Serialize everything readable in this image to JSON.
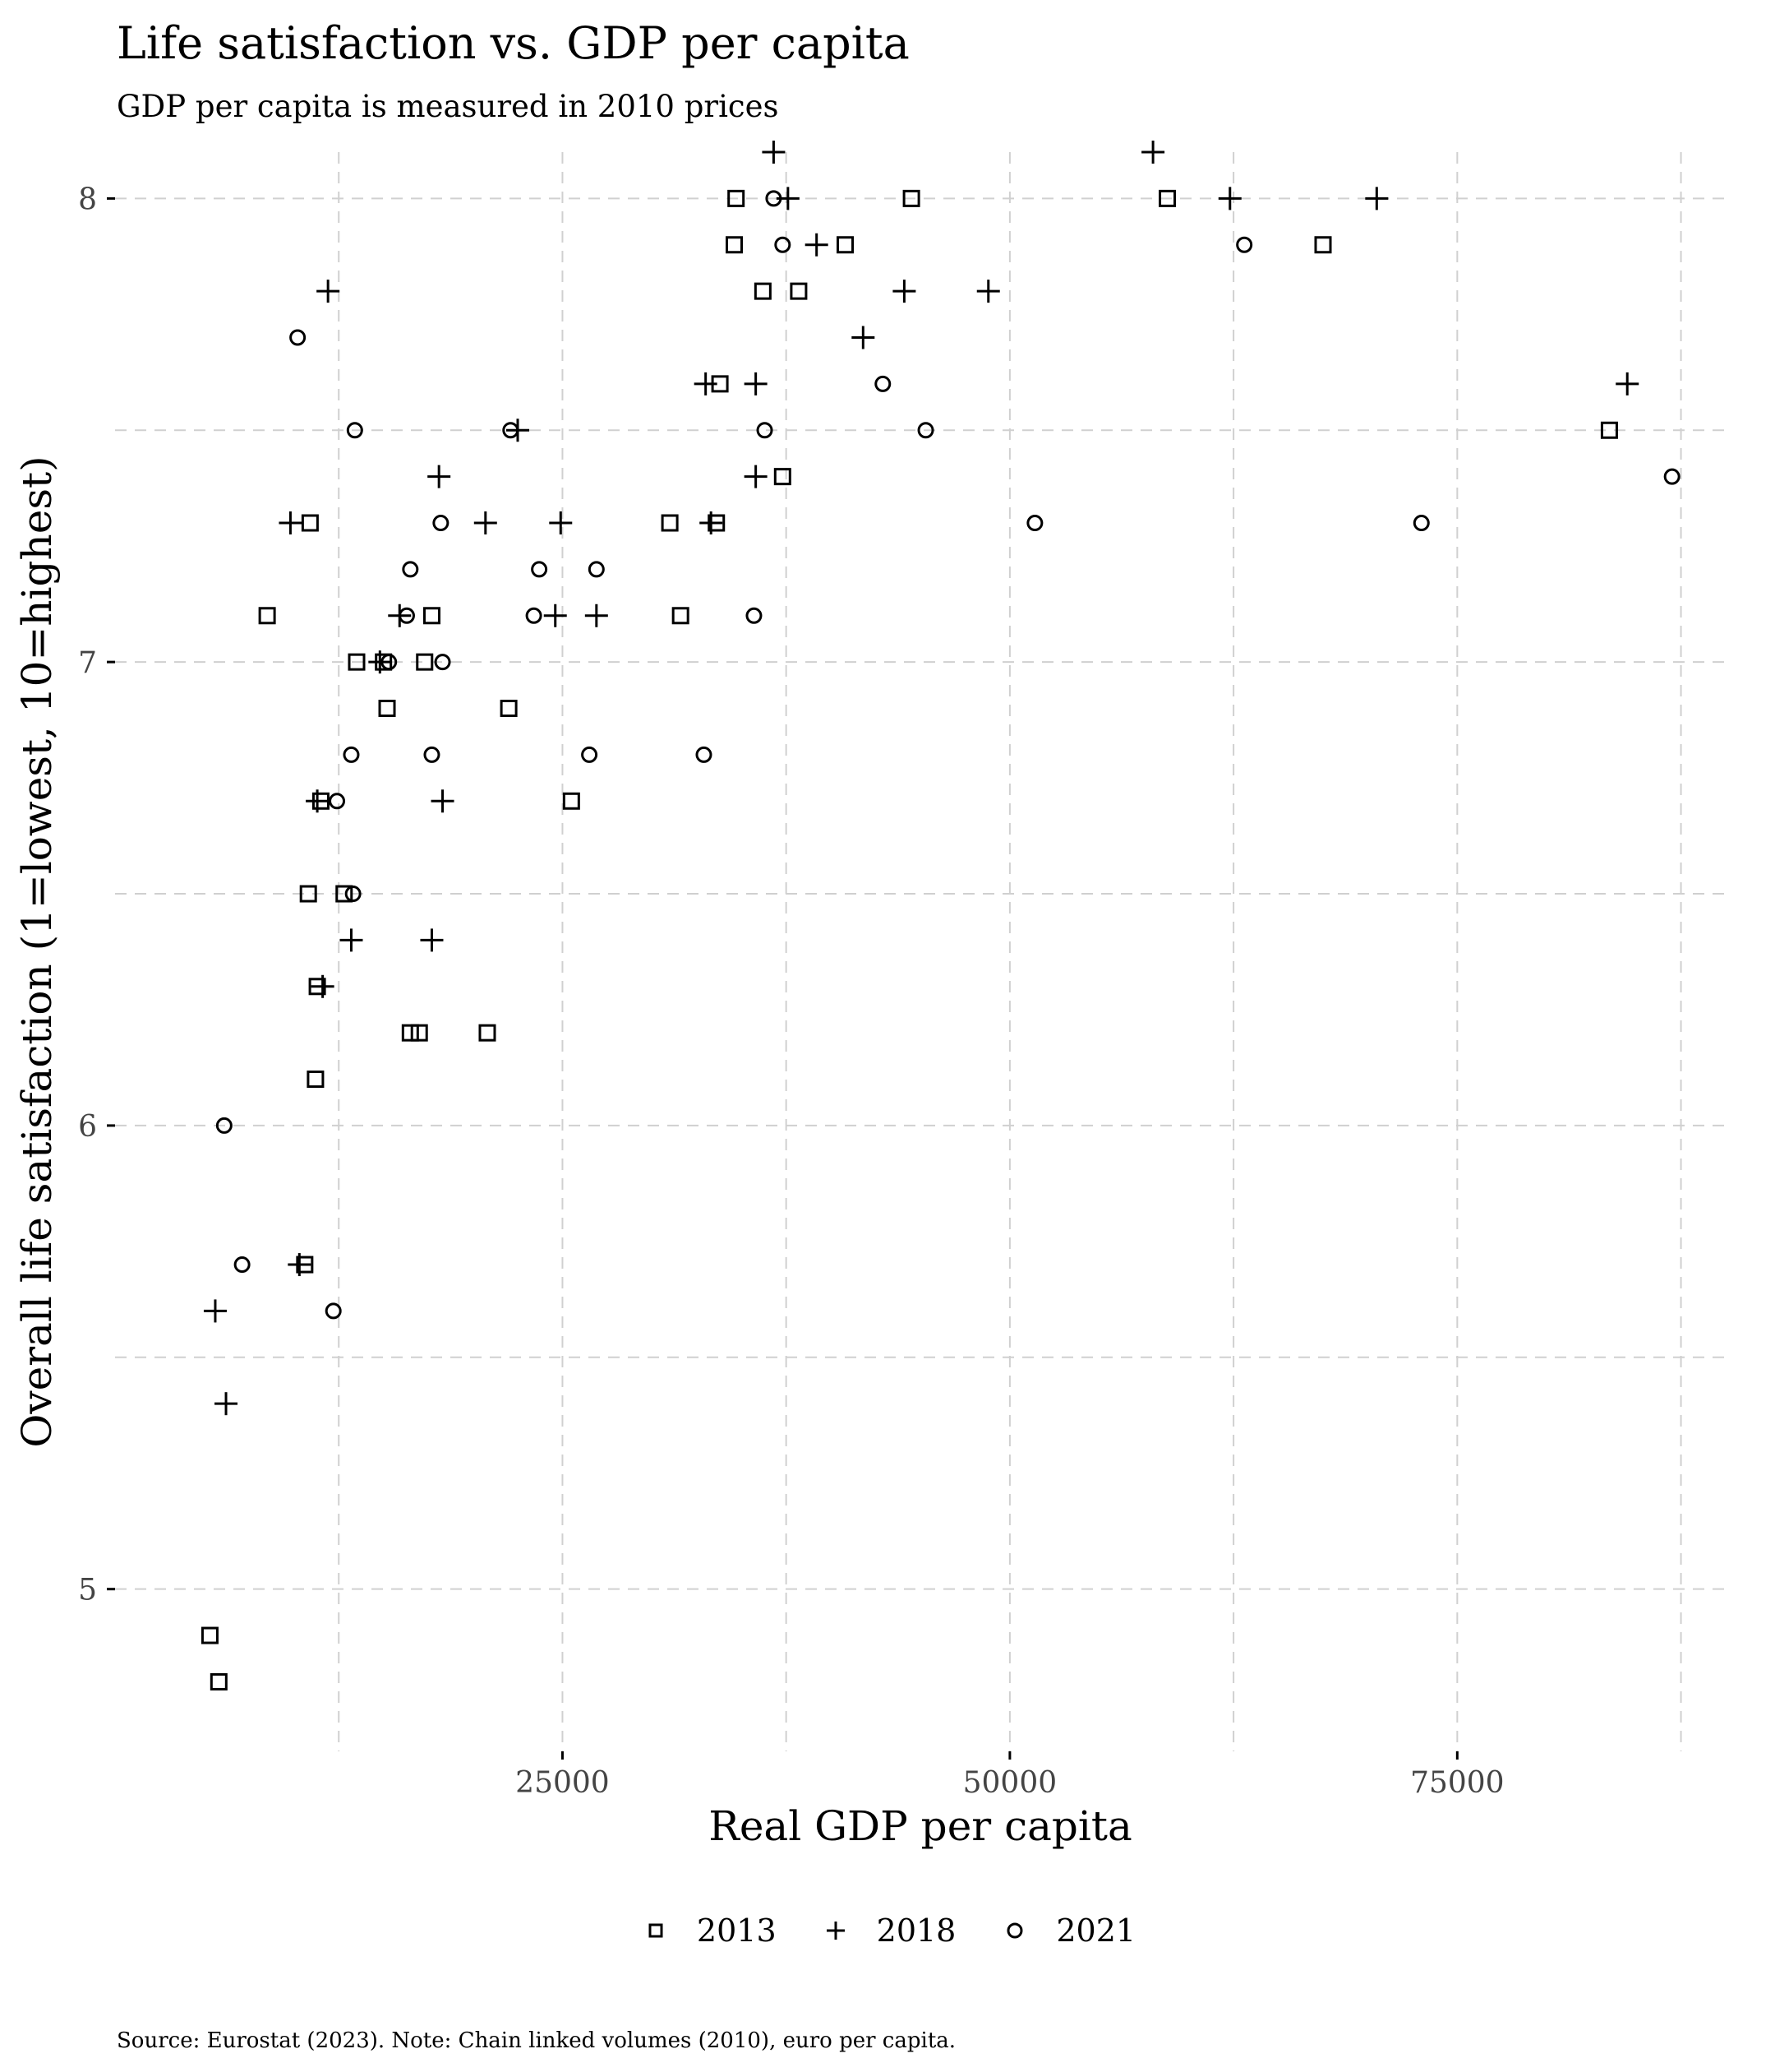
{
  "title": "Life satisfaction vs. GDP per capita",
  "subtitle": "GDP per capita is measured in 2010 prices",
  "caption": "Source: Eurostat (2023). Note: Chain linked volumes (2010), euro per capita.",
  "colors": {
    "grid": "#d0d0d0",
    "points": "#000000",
    "background": "#ffffff"
  },
  "chart_data": {
    "type": "scatter",
    "title": "Life satisfaction vs. GDP per capita",
    "subtitle": "GDP per capita is measured in 2010 prices",
    "xlabel": "Real GDP per capita",
    "ylabel": "Overall life satisfaction (1=lowest, 10=highest)",
    "xlim": [
      0,
      90000
    ],
    "ylim": [
      4.65,
      8.1
    ],
    "x_ticks": [
      25000,
      50000,
      75000
    ],
    "y_ticks": [
      5,
      6,
      7,
      8
    ],
    "grid": true,
    "legend_position": "bottom",
    "series": [
      {
        "name": "2013",
        "marker": "square",
        "points": [
          [
            5300,
            4.9
          ],
          [
            5800,
            4.8
          ],
          [
            8500,
            7.1
          ],
          [
            10900,
            7.3
          ],
          [
            10600,
            5.7
          ],
          [
            10800,
            6.5
          ],
          [
            11300,
            6.3
          ],
          [
            11200,
            6.1
          ],
          [
            11500,
            6.7
          ],
          [
            12800,
            6.5
          ],
          [
            13500,
            7.0
          ],
          [
            15000,
            7.0
          ],
          [
            15200,
            6.9
          ],
          [
            16500,
            6.2
          ],
          [
            17000,
            6.2
          ],
          [
            17300,
            7.0
          ],
          [
            17700,
            7.1
          ],
          [
            20800,
            6.2
          ],
          [
            22000,
            6.9
          ],
          [
            25500,
            6.7
          ],
          [
            31000,
            7.3
          ],
          [
            31600,
            7.1
          ],
          [
            33600,
            7.3
          ],
          [
            33800,
            7.6
          ],
          [
            34700,
            8.0
          ],
          [
            34600,
            7.9
          ],
          [
            36200,
            7.8
          ],
          [
            37300,
            7.4
          ],
          [
            38200,
            7.8
          ],
          [
            40800,
            7.9
          ],
          [
            44500,
            8.0
          ],
          [
            58800,
            8.0
          ],
          [
            67500,
            7.9
          ],
          [
            83500,
            7.5
          ]
        ]
      },
      {
        "name": "2018",
        "marker": "plus",
        "points": [
          [
            5600,
            5.6
          ],
          [
            6200,
            5.4
          ],
          [
            9800,
            7.3
          ],
          [
            10300,
            5.7
          ],
          [
            11300,
            6.7
          ],
          [
            11600,
            6.3
          ],
          [
            11900,
            7.8
          ],
          [
            13200,
            6.4
          ],
          [
            14800,
            7.0
          ],
          [
            15900,
            7.1
          ],
          [
            17700,
            6.4
          ],
          [
            18100,
            7.4
          ],
          [
            18300,
            6.7
          ],
          [
            20700,
            7.3
          ],
          [
            22500,
            7.5
          ],
          [
            24600,
            7.1
          ],
          [
            24900,
            7.3
          ],
          [
            26900,
            7.1
          ],
          [
            33000,
            7.6
          ],
          [
            33300,
            7.3
          ],
          [
            35800,
            7.4
          ],
          [
            35800,
            7.6
          ],
          [
            36800,
            8.1
          ],
          [
            37600,
            8.0
          ],
          [
            39200,
            7.9
          ],
          [
            41800,
            7.7
          ],
          [
            44100,
            7.8
          ],
          [
            48800,
            7.8
          ],
          [
            58000,
            8.1
          ],
          [
            62300,
            8.0
          ],
          [
            70500,
            8.0
          ],
          [
            84500,
            7.6
          ]
        ]
      },
      {
        "name": "2021",
        "marker": "circle",
        "points": [
          [
            6100,
            6.0
          ],
          [
            7100,
            5.7
          ],
          [
            10200,
            7.7
          ],
          [
            12200,
            5.6
          ],
          [
            12400,
            6.7
          ],
          [
            13200,
            6.8
          ],
          [
            13300,
            6.5
          ],
          [
            13400,
            7.5
          ],
          [
            15300,
            7.0
          ],
          [
            16300,
            7.1
          ],
          [
            16500,
            7.2
          ],
          [
            17700,
            6.8
          ],
          [
            18200,
            7.3
          ],
          [
            18300,
            7.0
          ],
          [
            22100,
            7.5
          ],
          [
            23400,
            7.1
          ],
          [
            23700,
            7.2
          ],
          [
            26500,
            6.8
          ],
          [
            26900,
            7.2
          ],
          [
            32900,
            6.8
          ],
          [
            35700,
            7.1
          ],
          [
            36300,
            7.5
          ],
          [
            36800,
            8.0
          ],
          [
            37300,
            7.9
          ],
          [
            42900,
            7.6
          ],
          [
            45300,
            7.5
          ],
          [
            51400,
            7.3
          ],
          [
            63100,
            7.9
          ],
          [
            73000,
            7.3
          ],
          [
            87000,
            7.4
          ]
        ]
      }
    ]
  }
}
